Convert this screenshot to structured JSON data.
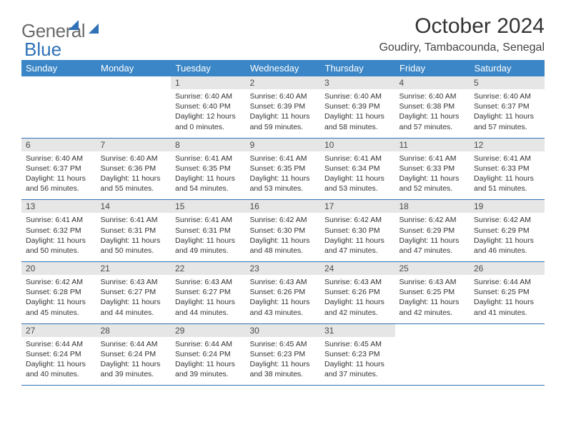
{
  "logo": {
    "text1": "General",
    "text2": "Blue"
  },
  "title": "October 2024",
  "subtitle": "Goudiry, Tambacounda, Senegal",
  "colors": {
    "header_bg": "#3b86c6",
    "header_text": "#ffffff",
    "daynum_bg": "#e6e6e6",
    "row_border": "#2f72b8",
    "logo_gray": "#6b6b6b",
    "logo_blue": "#2f72b8",
    "body_text": "#333333"
  },
  "typography": {
    "title_fontsize": 30,
    "subtitle_fontsize": 16,
    "dayhead_fontsize": 13,
    "daynum_fontsize": 12,
    "cell_fontsize": 10.5
  },
  "weekdays": [
    "Sunday",
    "Monday",
    "Tuesday",
    "Wednesday",
    "Thursday",
    "Friday",
    "Saturday"
  ],
  "weeks": [
    [
      {
        "day": "",
        "sunrise": "",
        "sunset": "",
        "daylight": ""
      },
      {
        "day": "",
        "sunrise": "",
        "sunset": "",
        "daylight": ""
      },
      {
        "day": "1",
        "sunrise": "Sunrise: 6:40 AM",
        "sunset": "Sunset: 6:40 PM",
        "daylight": "Daylight: 12 hours and 0 minutes."
      },
      {
        "day": "2",
        "sunrise": "Sunrise: 6:40 AM",
        "sunset": "Sunset: 6:39 PM",
        "daylight": "Daylight: 11 hours and 59 minutes."
      },
      {
        "day": "3",
        "sunrise": "Sunrise: 6:40 AM",
        "sunset": "Sunset: 6:39 PM",
        "daylight": "Daylight: 11 hours and 58 minutes."
      },
      {
        "day": "4",
        "sunrise": "Sunrise: 6:40 AM",
        "sunset": "Sunset: 6:38 PM",
        "daylight": "Daylight: 11 hours and 57 minutes."
      },
      {
        "day": "5",
        "sunrise": "Sunrise: 6:40 AM",
        "sunset": "Sunset: 6:37 PM",
        "daylight": "Daylight: 11 hours and 57 minutes."
      }
    ],
    [
      {
        "day": "6",
        "sunrise": "Sunrise: 6:40 AM",
        "sunset": "Sunset: 6:37 PM",
        "daylight": "Daylight: 11 hours and 56 minutes."
      },
      {
        "day": "7",
        "sunrise": "Sunrise: 6:40 AM",
        "sunset": "Sunset: 6:36 PM",
        "daylight": "Daylight: 11 hours and 55 minutes."
      },
      {
        "day": "8",
        "sunrise": "Sunrise: 6:41 AM",
        "sunset": "Sunset: 6:35 PM",
        "daylight": "Daylight: 11 hours and 54 minutes."
      },
      {
        "day": "9",
        "sunrise": "Sunrise: 6:41 AM",
        "sunset": "Sunset: 6:35 PM",
        "daylight": "Daylight: 11 hours and 53 minutes."
      },
      {
        "day": "10",
        "sunrise": "Sunrise: 6:41 AM",
        "sunset": "Sunset: 6:34 PM",
        "daylight": "Daylight: 11 hours and 53 minutes."
      },
      {
        "day": "11",
        "sunrise": "Sunrise: 6:41 AM",
        "sunset": "Sunset: 6:33 PM",
        "daylight": "Daylight: 11 hours and 52 minutes."
      },
      {
        "day": "12",
        "sunrise": "Sunrise: 6:41 AM",
        "sunset": "Sunset: 6:33 PM",
        "daylight": "Daylight: 11 hours and 51 minutes."
      }
    ],
    [
      {
        "day": "13",
        "sunrise": "Sunrise: 6:41 AM",
        "sunset": "Sunset: 6:32 PM",
        "daylight": "Daylight: 11 hours and 50 minutes."
      },
      {
        "day": "14",
        "sunrise": "Sunrise: 6:41 AM",
        "sunset": "Sunset: 6:31 PM",
        "daylight": "Daylight: 11 hours and 50 minutes."
      },
      {
        "day": "15",
        "sunrise": "Sunrise: 6:41 AM",
        "sunset": "Sunset: 6:31 PM",
        "daylight": "Daylight: 11 hours and 49 minutes."
      },
      {
        "day": "16",
        "sunrise": "Sunrise: 6:42 AM",
        "sunset": "Sunset: 6:30 PM",
        "daylight": "Daylight: 11 hours and 48 minutes."
      },
      {
        "day": "17",
        "sunrise": "Sunrise: 6:42 AM",
        "sunset": "Sunset: 6:30 PM",
        "daylight": "Daylight: 11 hours and 47 minutes."
      },
      {
        "day": "18",
        "sunrise": "Sunrise: 6:42 AM",
        "sunset": "Sunset: 6:29 PM",
        "daylight": "Daylight: 11 hours and 47 minutes."
      },
      {
        "day": "19",
        "sunrise": "Sunrise: 6:42 AM",
        "sunset": "Sunset: 6:29 PM",
        "daylight": "Daylight: 11 hours and 46 minutes."
      }
    ],
    [
      {
        "day": "20",
        "sunrise": "Sunrise: 6:42 AM",
        "sunset": "Sunset: 6:28 PM",
        "daylight": "Daylight: 11 hours and 45 minutes."
      },
      {
        "day": "21",
        "sunrise": "Sunrise: 6:43 AM",
        "sunset": "Sunset: 6:27 PM",
        "daylight": "Daylight: 11 hours and 44 minutes."
      },
      {
        "day": "22",
        "sunrise": "Sunrise: 6:43 AM",
        "sunset": "Sunset: 6:27 PM",
        "daylight": "Daylight: 11 hours and 44 minutes."
      },
      {
        "day": "23",
        "sunrise": "Sunrise: 6:43 AM",
        "sunset": "Sunset: 6:26 PM",
        "daylight": "Daylight: 11 hours and 43 minutes."
      },
      {
        "day": "24",
        "sunrise": "Sunrise: 6:43 AM",
        "sunset": "Sunset: 6:26 PM",
        "daylight": "Daylight: 11 hours and 42 minutes."
      },
      {
        "day": "25",
        "sunrise": "Sunrise: 6:43 AM",
        "sunset": "Sunset: 6:25 PM",
        "daylight": "Daylight: 11 hours and 42 minutes."
      },
      {
        "day": "26",
        "sunrise": "Sunrise: 6:44 AM",
        "sunset": "Sunset: 6:25 PM",
        "daylight": "Daylight: 11 hours and 41 minutes."
      }
    ],
    [
      {
        "day": "27",
        "sunrise": "Sunrise: 6:44 AM",
        "sunset": "Sunset: 6:24 PM",
        "daylight": "Daylight: 11 hours and 40 minutes."
      },
      {
        "day": "28",
        "sunrise": "Sunrise: 6:44 AM",
        "sunset": "Sunset: 6:24 PM",
        "daylight": "Daylight: 11 hours and 39 minutes."
      },
      {
        "day": "29",
        "sunrise": "Sunrise: 6:44 AM",
        "sunset": "Sunset: 6:24 PM",
        "daylight": "Daylight: 11 hours and 39 minutes."
      },
      {
        "day": "30",
        "sunrise": "Sunrise: 6:45 AM",
        "sunset": "Sunset: 6:23 PM",
        "daylight": "Daylight: 11 hours and 38 minutes."
      },
      {
        "day": "31",
        "sunrise": "Sunrise: 6:45 AM",
        "sunset": "Sunset: 6:23 PM",
        "daylight": "Daylight: 11 hours and 37 minutes."
      },
      {
        "day": "",
        "sunrise": "",
        "sunset": "",
        "daylight": ""
      },
      {
        "day": "",
        "sunrise": "",
        "sunset": "",
        "daylight": ""
      }
    ]
  ]
}
